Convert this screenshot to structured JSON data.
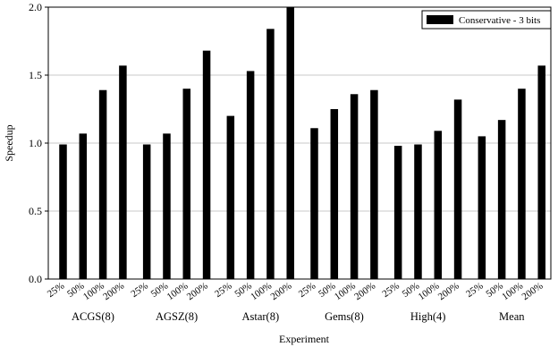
{
  "chart_data": {
    "type": "bar",
    "title": "",
    "xlabel": "Experiment",
    "ylabel": "Speedup",
    "ylim": [
      0.0,
      2.0
    ],
    "yticks": [
      "0.0",
      "0.5",
      "1.0",
      "1.5",
      "2.0"
    ],
    "ytick_values": [
      0.0,
      0.5,
      1.0,
      1.5,
      2.0
    ],
    "grid": true,
    "legend_position": "top-right",
    "series": [
      {
        "name": "Conservative - 3 bits",
        "color": "#000000"
      }
    ],
    "groups": [
      {
        "label": "ACGS(8)",
        "categories": [
          "25%",
          "50%",
          "100%",
          "200%"
        ],
        "values": [
          0.99,
          1.07,
          1.39,
          1.57
        ]
      },
      {
        "label": "AGSZ(8)",
        "categories": [
          "25%",
          "50%",
          "100%",
          "200%"
        ],
        "values": [
          0.99,
          1.07,
          1.4,
          1.68
        ]
      },
      {
        "label": "Astar(8)",
        "categories": [
          "25%",
          "50%",
          "100%",
          "200%"
        ],
        "values": [
          1.2,
          1.53,
          1.84,
          2.0
        ]
      },
      {
        "label": "Gems(8)",
        "categories": [
          "25%",
          "50%",
          "100%",
          "200%"
        ],
        "values": [
          1.11,
          1.25,
          1.36,
          1.39
        ]
      },
      {
        "label": "High(4)",
        "categories": [
          "25%",
          "50%",
          "100%",
          "200%"
        ],
        "values": [
          0.98,
          0.99,
          1.09,
          1.32
        ]
      },
      {
        "label": "Mean",
        "categories": [
          "25%",
          "50%",
          "100%",
          "200%"
        ],
        "values": [
          1.05,
          1.17,
          1.4,
          1.57
        ]
      }
    ]
  }
}
